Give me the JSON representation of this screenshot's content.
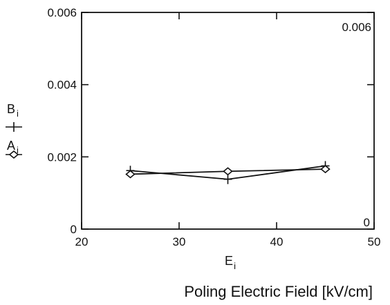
{
  "chart_data": {
    "type": "line",
    "xlabel": "E",
    "xlabel_sub": "i",
    "xlabel_long": "Poling Electric Field [kV/cm]",
    "xlim": [
      20,
      50
    ],
    "ylim": [
      0,
      0.006
    ],
    "x_ticks": [
      20,
      30,
      40,
      50
    ],
    "x_tick_labels": [
      "20",
      "30",
      "40",
      "50"
    ],
    "y_ticks": [
      0,
      0.002,
      0.004,
      0.006
    ],
    "y_tick_labels": [
      "0",
      "0.002",
      "0.004",
      "0.006"
    ],
    "right_axis_labels": [
      "0.006",
      "0"
    ],
    "grid": false,
    "legend_position": "left",
    "series": [
      {
        "name": "B",
        "name_sub": "i",
        "marker": "plus",
        "x": [
          25,
          35,
          45
        ],
        "y": [
          0.00162,
          0.00138,
          0.00175
        ]
      },
      {
        "name": "A",
        "name_sub": "i",
        "marker": "diamond",
        "x": [
          25,
          35,
          45
        ],
        "y": [
          0.00152,
          0.0016,
          0.00166
        ]
      }
    ]
  }
}
